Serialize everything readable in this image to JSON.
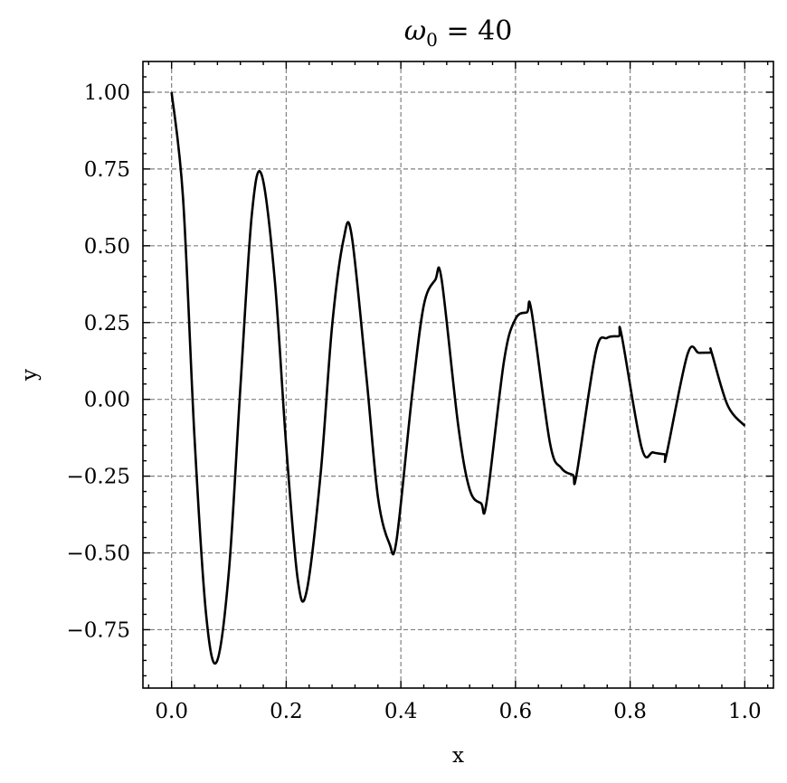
{
  "chart_data": {
    "type": "line",
    "title": "ω0 = 40",
    "title_main": "ω",
    "title_sub": "0",
    "title_rest": " = 40",
    "xlabel": "x",
    "ylabel": "y",
    "xlim": [
      -0.05,
      1.05
    ],
    "ylim": [
      -0.94,
      1.1
    ],
    "xticks": [
      0.0,
      0.2,
      0.4,
      0.6,
      0.8,
      1.0
    ],
    "xtick_labels": [
      "0.0",
      "0.2",
      "0.4",
      "0.6",
      "0.8",
      "1.0"
    ],
    "yticks": [
      1.0,
      0.75,
      0.5,
      0.25,
      0.0,
      -0.25,
      -0.5,
      -0.75
    ],
    "ytick_labels": [
      "1.00",
      "0.75",
      "0.50",
      "0.25",
      "0.00",
      "−0.25",
      "−0.50",
      "−0.75"
    ],
    "grid": true,
    "line_color": "#000000",
    "series": [
      {
        "x": [
          0.0,
          0.02,
          0.04,
          0.06,
          0.0785,
          0.1,
          0.12,
          0.14,
          0.157,
          0.18,
          0.2,
          0.22,
          0.2355,
          0.26,
          0.28,
          0.3,
          0.314,
          0.34,
          0.36,
          0.38,
          0.3925,
          0.42,
          0.44,
          0.46,
          0.471,
          0.5,
          0.52,
          0.54,
          0.5495,
          0.58,
          0.6,
          0.62,
          0.628,
          0.66,
          0.68,
          0.7,
          0.7065,
          0.74,
          0.76,
          0.78,
          0.785,
          0.82,
          0.84,
          0.86,
          0.8635,
          0.9,
          0.92,
          0.94,
          0.942,
          0.97,
          1.0
        ],
        "y": [
          1.0,
          0.6555,
          -0.1245,
          -0.6961,
          -0.8554,
          -0.5594,
          0.0381,
          0.6017,
          0.7318,
          0.3888,
          -0.1524,
          -0.5847,
          -0.6258,
          -0.2431,
          0.2384,
          0.5203,
          0.5358,
          0.0717,
          -0.3181,
          -0.4696,
          -0.4583,
          0.0211,
          0.3062,
          0.3889,
          0.3917,
          -0.0839,
          -0.2932,
          -0.3386,
          -0.3353,
          0.1255,
          0.2617,
          0.2834,
          0.2868,
          -0.1407,
          -0.2235,
          -0.2457,
          -0.2453,
          0.1537,
          0.2001,
          0.2054,
          0.2098,
          -0.1568,
          -0.1727,
          -0.1788,
          -0.1793,
          0.1463,
          0.1515,
          0.1521,
          0.1534,
          -0.0189,
          -0.0863
        ]
      }
    ]
  }
}
